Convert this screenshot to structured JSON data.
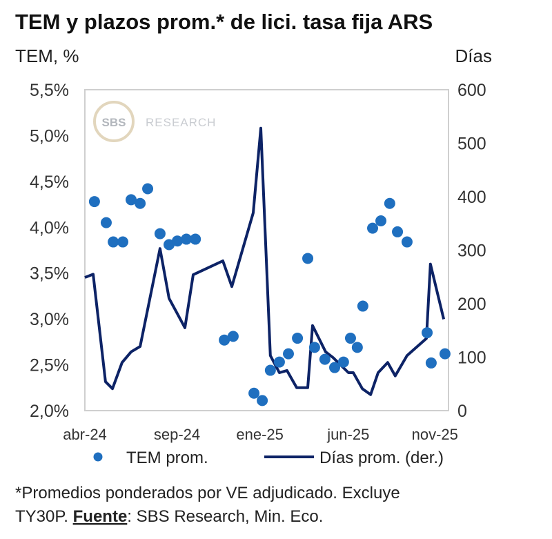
{
  "chart_data": {
    "type": "scatter+line",
    "title": "TEM y plazos prom.* de lici. tasa fija ARS",
    "ylabel_left": "TEM, %",
    "ylabel_right": "Días",
    "ylim_left": [
      2.0,
      5.5
    ],
    "ylim_right": [
      0,
      600
    ],
    "xlim": [
      0,
      19.74
    ],
    "x_unit": "months since abr-24",
    "left_ticks": [
      {
        "v": 2.0,
        "label": "2,0%"
      },
      {
        "v": 2.5,
        "label": "2,5%"
      },
      {
        "v": 3.0,
        "label": "3,0%"
      },
      {
        "v": 3.5,
        "label": "3,5%"
      },
      {
        "v": 4.0,
        "label": "4,0%"
      },
      {
        "v": 4.5,
        "label": "4,5%"
      },
      {
        "v": 5.0,
        "label": "5,0%"
      },
      {
        "v": 5.5,
        "label": "5,5%"
      }
    ],
    "right_ticks": [
      {
        "v": 0,
        "label": "0"
      },
      {
        "v": 100,
        "label": "100"
      },
      {
        "v": 200,
        "label": "200"
      },
      {
        "v": 300,
        "label": "300"
      },
      {
        "v": 400,
        "label": "400"
      },
      {
        "v": 500,
        "label": "500"
      },
      {
        "v": 600,
        "label": "600"
      }
    ],
    "x_ticks": [
      {
        "v": 0,
        "label": "abr-24"
      },
      {
        "v": 5,
        "label": "sep-24"
      },
      {
        "v": 9.5,
        "label": "ene-25"
      },
      {
        "v": 14.3,
        "label": "jun-25"
      },
      {
        "v": 19,
        "label": "nov-25"
      }
    ],
    "grid": false,
    "legend_position": "bottom",
    "series": [
      {
        "name": "TEM prom.",
        "type": "scatter",
        "axis": "left",
        "color": "#1f6fbf",
        "x": [
          0.52,
          1.16,
          1.54,
          2.06,
          2.51,
          3.0,
          3.41,
          4.08,
          4.57,
          5.02,
          5.51,
          6.0,
          7.57,
          8.05,
          9.18,
          9.63,
          10.07,
          10.56,
          11.05,
          11.54,
          12.1,
          12.47,
          13.03,
          13.56,
          14.04,
          14.42,
          14.79,
          15.09,
          15.62,
          16.07,
          16.55,
          16.97,
          17.49,
          18.58,
          18.8,
          19.55
        ],
        "y": [
          4.28,
          4.05,
          3.84,
          3.84,
          4.3,
          4.26,
          4.42,
          3.93,
          3.81,
          3.85,
          3.87,
          3.87,
          2.77,
          2.81,
          2.19,
          2.11,
          2.44,
          2.53,
          2.62,
          2.79,
          3.66,
          2.69,
          2.56,
          2.47,
          2.53,
          2.79,
          2.69,
          3.14,
          3.99,
          4.07,
          4.26,
          3.95,
          3.84,
          2.85,
          2.52,
          2.62
        ]
      },
      {
        "name": "Días prom. (der.)",
        "type": "line",
        "axis": "right",
        "color": "#0d2366",
        "x": [
          0,
          0.45,
          1.12,
          1.5,
          2.02,
          2.51,
          3.0,
          4.08,
          4.57,
          5.43,
          5.88,
          7.49,
          7.98,
          9.14,
          9.55,
          10.07,
          10.56,
          10.97,
          11.5,
          12.1,
          12.36,
          13.07,
          13.48,
          14.31,
          14.57,
          15.06,
          15.51,
          15.92,
          16.44,
          16.85,
          17.49,
          18.54,
          18.76,
          19.48
        ],
        "y": [
          249,
          255,
          54,
          41,
          90,
          110,
          120,
          303,
          210,
          155,
          254,
          280,
          232,
          370,
          528,
          103,
          71,
          75,
          43,
          43,
          159,
          110,
          99,
          71,
          71,
          41,
          30,
          71,
          90,
          65,
          103,
          135,
          274,
          171
        ]
      }
    ],
    "watermark": {
      "logo": "SBS",
      "text": "RESEARCH"
    },
    "footnote_line1": "*Promedios ponderados por VE adjudicado. Excluye",
    "footnote_line2_prefix": "TY30P. ",
    "footnote_source_label": "Fuente",
    "footnote_source_text": ": SBS Research, Min. Eco."
  }
}
